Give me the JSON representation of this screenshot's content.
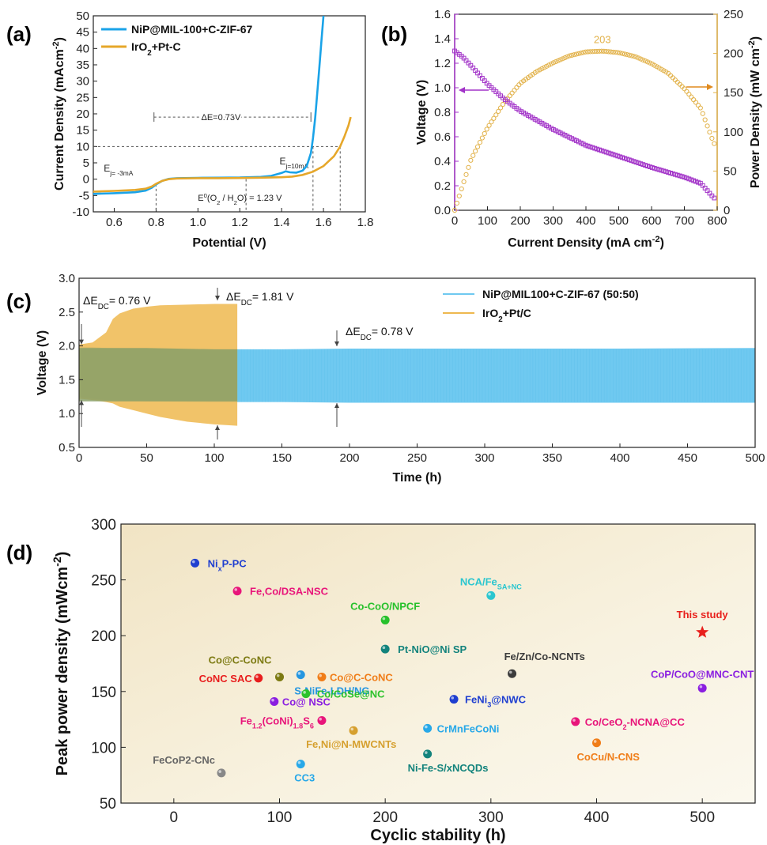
{
  "chart_data": [
    {
      "panel": "(a)",
      "type": "line",
      "xlabel": "Potential (V)",
      "ylabel": "Current Density (mAcm",
      "ylabel_sup": "-2",
      "ylabel_end": ")",
      "xlim": [
        0.5,
        1.8
      ],
      "ylim": [
        -10,
        50
      ],
      "xticks": [
        0.6,
        0.8,
        1.0,
        1.2,
        1.4,
        1.6,
        1.8
      ],
      "yticks": [
        -10,
        -5,
        0,
        5,
        10,
        15,
        20,
        25,
        30,
        35,
        40,
        45,
        50
      ],
      "legend_position": "top-left",
      "series": [
        {
          "name": "NiP@MIL-100+C-ZIF-67",
          "color": "#1aa3e8",
          "x": [
            0.5,
            0.6,
            0.7,
            0.75,
            0.78,
            0.8,
            0.83,
            0.86,
            0.9,
            1.0,
            1.1,
            1.2,
            1.3,
            1.35,
            1.4,
            1.42,
            1.44,
            1.47,
            1.5,
            1.52,
            1.54,
            1.55,
            1.56,
            1.57,
            1.58,
            1.59,
            1.6
          ],
          "y": [
            -4.5,
            -4.3,
            -4.0,
            -3.5,
            -2.6,
            -1.6,
            -0.5,
            0.1,
            0.3,
            0.4,
            0.45,
            0.5,
            0.7,
            1.0,
            1.9,
            2.4,
            2.1,
            2.0,
            2.6,
            4.0,
            8.0,
            12.5,
            18.5,
            26,
            34,
            42,
            50
          ]
        },
        {
          "name": "IrO$_2$+Pt-C",
          "legend_text": "IrO",
          "legend_sub": "2",
          "legend_end": "+Pt-C",
          "color": "#e6a72a",
          "x": [
            0.5,
            0.6,
            0.7,
            0.75,
            0.78,
            0.8,
            0.83,
            0.86,
            0.9,
            1.0,
            1.1,
            1.2,
            1.3,
            1.4,
            1.45,
            1.5,
            1.55,
            1.6,
            1.65,
            1.68,
            1.7,
            1.72,
            1.73
          ],
          "y": [
            -3.8,
            -3.6,
            -3.3,
            -2.9,
            -2.2,
            -1.4,
            -0.5,
            0.0,
            0.2,
            0.3,
            0.3,
            0.35,
            0.45,
            0.6,
            0.8,
            1.3,
            2.3,
            4.0,
            7.0,
            10.0,
            13.0,
            16.5,
            19.0
          ]
        }
      ],
      "annotations": {
        "delta_e": "ΔE=0.73",
        "delta_e_unit": "V",
        "e_10_main": "E",
        "e_10_sub": "j=10mA",
        "e_neg3_main": "E",
        "e_neg3_sub": "j= -3mA",
        "e0_a": "E",
        "e0_sup": "0",
        "e0_b": "(O",
        "e0_sub1": "2",
        "e0_c": " / H",
        "e0_sub2": "2",
        "e0_d": "O) = 1.23 V"
      }
    },
    {
      "panel": "(b)",
      "type": "scatter",
      "xlabel": "Current Density (mA cm",
      "xlabel_sup": "-2",
      "xlabel_end": ")",
      "ylabel_left": "Voltage (V)",
      "ylabel_right": "Power Density (mW cm",
      "ylabel_right_sup": "-2",
      "ylabel_right_end": ")",
      "xlim": [
        0,
        800
      ],
      "ylim_left": [
        0,
        1.6
      ],
      "ylim_right": [
        0,
        250
      ],
      "xticks": [
        0,
        100,
        200,
        300,
        400,
        500,
        600,
        700,
        800
      ],
      "yticks_left": [
        0.0,
        0.2,
        0.4,
        0.6,
        0.8,
        1.0,
        1.2,
        1.4,
        1.6
      ],
      "yticks_right": [
        0,
        50,
        100,
        150,
        200,
        250
      ],
      "left_color": "#a233c8",
      "right_color": "#e2b24a",
      "peak_label": "203",
      "series": [
        {
          "name": "Voltage",
          "axis": "left",
          "x": [
            0,
            25,
            50,
            100,
            150,
            200,
            300,
            400,
            500,
            600,
            700,
            750,
            790
          ],
          "y": [
            1.3,
            1.25,
            1.18,
            1.03,
            0.91,
            0.81,
            0.66,
            0.53,
            0.44,
            0.35,
            0.27,
            0.22,
            0.1
          ]
        },
        {
          "name": "Power Density",
          "axis": "right",
          "x": [
            0,
            50,
            100,
            150,
            200,
            250,
            300,
            350,
            400,
            450,
            500,
            550,
            600,
            650,
            700,
            750,
            790
          ],
          "y": [
            0,
            65,
            105,
            137,
            162,
            177,
            188,
            197,
            202,
            203,
            201,
            196,
            187,
            175,
            155,
            130,
            85
          ]
        }
      ]
    },
    {
      "panel": "(c)",
      "type": "area",
      "xlabel": "Time (h)",
      "ylabel": "Voltage (V)",
      "xlim": [
        0,
        500
      ],
      "ylim": [
        0.5,
        3.0
      ],
      "xticks": [
        0,
        50,
        100,
        150,
        200,
        250,
        300,
        350,
        400,
        450,
        500
      ],
      "yticks": [
        0.5,
        1.0,
        1.5,
        2.0,
        2.5,
        3.0
      ],
      "legend_position": "top-right",
      "series": [
        {
          "name": "NiP@MIL100+C-ZIF-67 (50:50)",
          "color": "#6fc9f0",
          "x": [
            0,
            10,
            20,
            50,
            100,
            150,
            200,
            300,
            400,
            500
          ],
          "upper": [
            1.98,
            1.98,
            1.97,
            1.96,
            1.95,
            1.95,
            1.96,
            1.96,
            1.96,
            1.97
          ],
          "lower": [
            1.25,
            1.22,
            1.2,
            1.18,
            1.17,
            1.17,
            1.16,
            1.16,
            1.16,
            1.16
          ]
        },
        {
          "name": "IrO$_2$+Pt/C",
          "legend_text": "IrO",
          "legend_sub": "2",
          "legend_end": "+Pt/C",
          "color": "#eeb84f",
          "x": [
            0,
            10,
            20,
            25,
            30,
            40,
            50,
            60,
            80,
            100,
            117
          ],
          "upper": [
            2.02,
            2.05,
            2.2,
            2.4,
            2.48,
            2.55,
            2.58,
            2.6,
            2.61,
            2.62,
            2.62
          ],
          "lower": [
            1.22,
            1.2,
            1.17,
            1.15,
            1.1,
            1.05,
            1.0,
            0.95,
            0.88,
            0.84,
            0.82
          ]
        }
      ],
      "annotations": [
        {
          "text": "ΔE",
          "sub": "DC",
          "value": "= 0.76 V"
        },
        {
          "text": "ΔE",
          "sub": "DC",
          "value": "= 1.81 V"
        },
        {
          "text": "ΔE",
          "sub": "DC",
          "value": "= 0.78 V"
        }
      ]
    },
    {
      "panel": "(d)",
      "type": "scatter",
      "xlabel": "Cyclic stability (h)",
      "ylabel": "Peak power density (mWcm",
      "ylabel_sup": "-2",
      "ylabel_end": ")",
      "xlim": [
        -50,
        550
      ],
      "ylim": [
        50,
        300
      ],
      "xticks": [
        0,
        100,
        200,
        300,
        400,
        500
      ],
      "yticks": [
        50,
        100,
        150,
        200,
        250,
        300
      ],
      "points": [
        {
          "label": "Ni",
          "sub": "x",
          "rest": "P-PC",
          "x": 20,
          "y": 265,
          "color": "#1f3fd0"
        },
        {
          "label": "Fe,Co/DSA-NSC",
          "x": 60,
          "y": 240,
          "color": "#e8157a"
        },
        {
          "label": "Co-CoO/NPCF",
          "x": 200,
          "y": 214,
          "color": "#27c12b"
        },
        {
          "label": "NCA/Fe",
          "sub": "SA+NC",
          "x": 300,
          "y": 236,
          "color": "#2bc6cf"
        },
        {
          "label": "Pt-NiO@Ni SP",
          "x": 200,
          "y": 188,
          "color": "#13837c"
        },
        {
          "label": "This study",
          "x": 500,
          "y": 203,
          "color": "#e8201c",
          "marker": "star"
        },
        {
          "label": "Co@C-CoNC",
          "x": 100,
          "y": 163,
          "color": "#7c7a12"
        },
        {
          "label": "S-NiFe-LDH/NG",
          "x": 120,
          "y": 165,
          "color": "#2596e0"
        },
        {
          "label": "CoNC SAC",
          "x": 80,
          "y": 162,
          "color": "#e81d1d"
        },
        {
          "label": "Co@C-CoNC",
          "x": 140,
          "y": 163,
          "color": "#f07d18"
        },
        {
          "label": "Fe/Zn/Co-NCNTs",
          "x": 320,
          "y": 166,
          "color": "#3c3c3c"
        },
        {
          "label": "CoP/CoO@MNC-CNT",
          "x": 500,
          "y": 153,
          "color": "#8a1ee0"
        },
        {
          "label": "Co/CoSe@NC",
          "x": 125,
          "y": 148,
          "color": "#2cc22b"
        },
        {
          "label": "FeNi",
          "sub": "3",
          "rest": "@NWC",
          "x": 265,
          "y": 143,
          "color": "#1f3fd0"
        },
        {
          "label": "Co@ NSC",
          "x": 95,
          "y": 141,
          "color": "#8a1ee0"
        },
        {
          "label": "Fe",
          "sub": "1.2",
          "rest": "(CoNi)",
          "sub2": "1.8",
          "rest2": "S",
          "sub3": "6",
          "x": 140,
          "y": 124,
          "color": "#e8157a"
        },
        {
          "label": "Co/CeO",
          "sub": "2",
          "rest": "-NCNA@CC",
          "x": 380,
          "y": 123,
          "color": "#e8157a"
        },
        {
          "label": "CrMnFeCoNi",
          "x": 240,
          "y": 117,
          "color": "#27a8e8"
        },
        {
          "label": "Fe,Ni@N-MWCNTs",
          "x": 170,
          "y": 115,
          "color": "#d6a02f"
        },
        {
          "label": "CoCu/N-CNS",
          "x": 400,
          "y": 104,
          "color": "#f07d18"
        },
        {
          "label": "Ni-Fe-S/xNCQDs",
          "x": 240,
          "y": 94,
          "color": "#13837c"
        },
        {
          "label": "CC3",
          "x": 120,
          "y": 85,
          "color": "#27a8e8"
        },
        {
          "label": "FeCoP2-CNc",
          "x": 45,
          "y": 77,
          "color": "#888888"
        }
      ]
    }
  ]
}
